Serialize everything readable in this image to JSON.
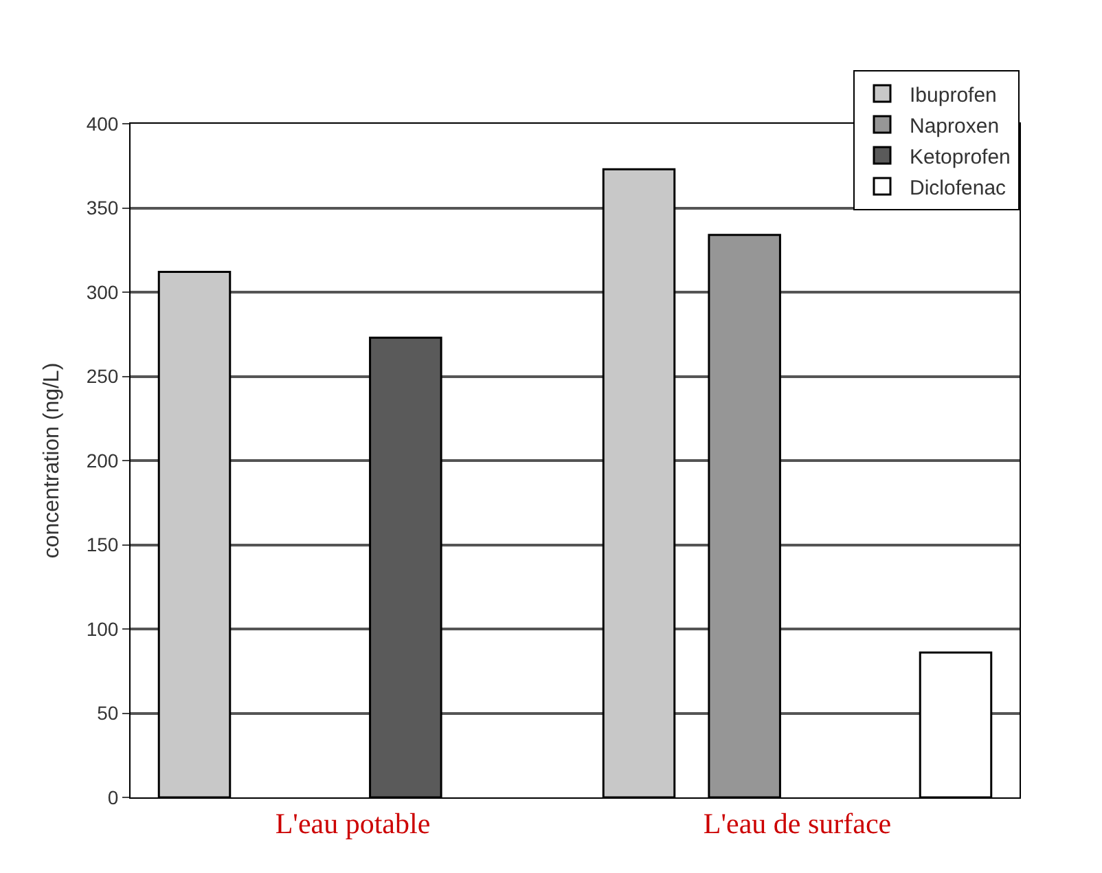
{
  "chart_data": {
    "type": "bar",
    "ylabel": "concentration (ng/L)",
    "categories": [
      "L'eau potable",
      "L'eau de surface"
    ],
    "series": [
      {
        "name": "Ibuprofen",
        "color": "#c8c8c8",
        "values": [
          312,
          373
        ]
      },
      {
        "name": "Naproxen",
        "color": "#969696",
        "values": [
          null,
          334
        ]
      },
      {
        "name": "Ketoprofen",
        "color": "#5a5a5a",
        "values": [
          273,
          null
        ]
      },
      {
        "name": "Diclofenac",
        "color": "#ffffff",
        "values": [
          null,
          86
        ]
      }
    ],
    "ylim": [
      0,
      400
    ],
    "yticks": [
      0,
      50,
      100,
      150,
      200,
      250,
      300,
      350,
      400
    ],
    "grid": "y",
    "legend": "top right"
  }
}
